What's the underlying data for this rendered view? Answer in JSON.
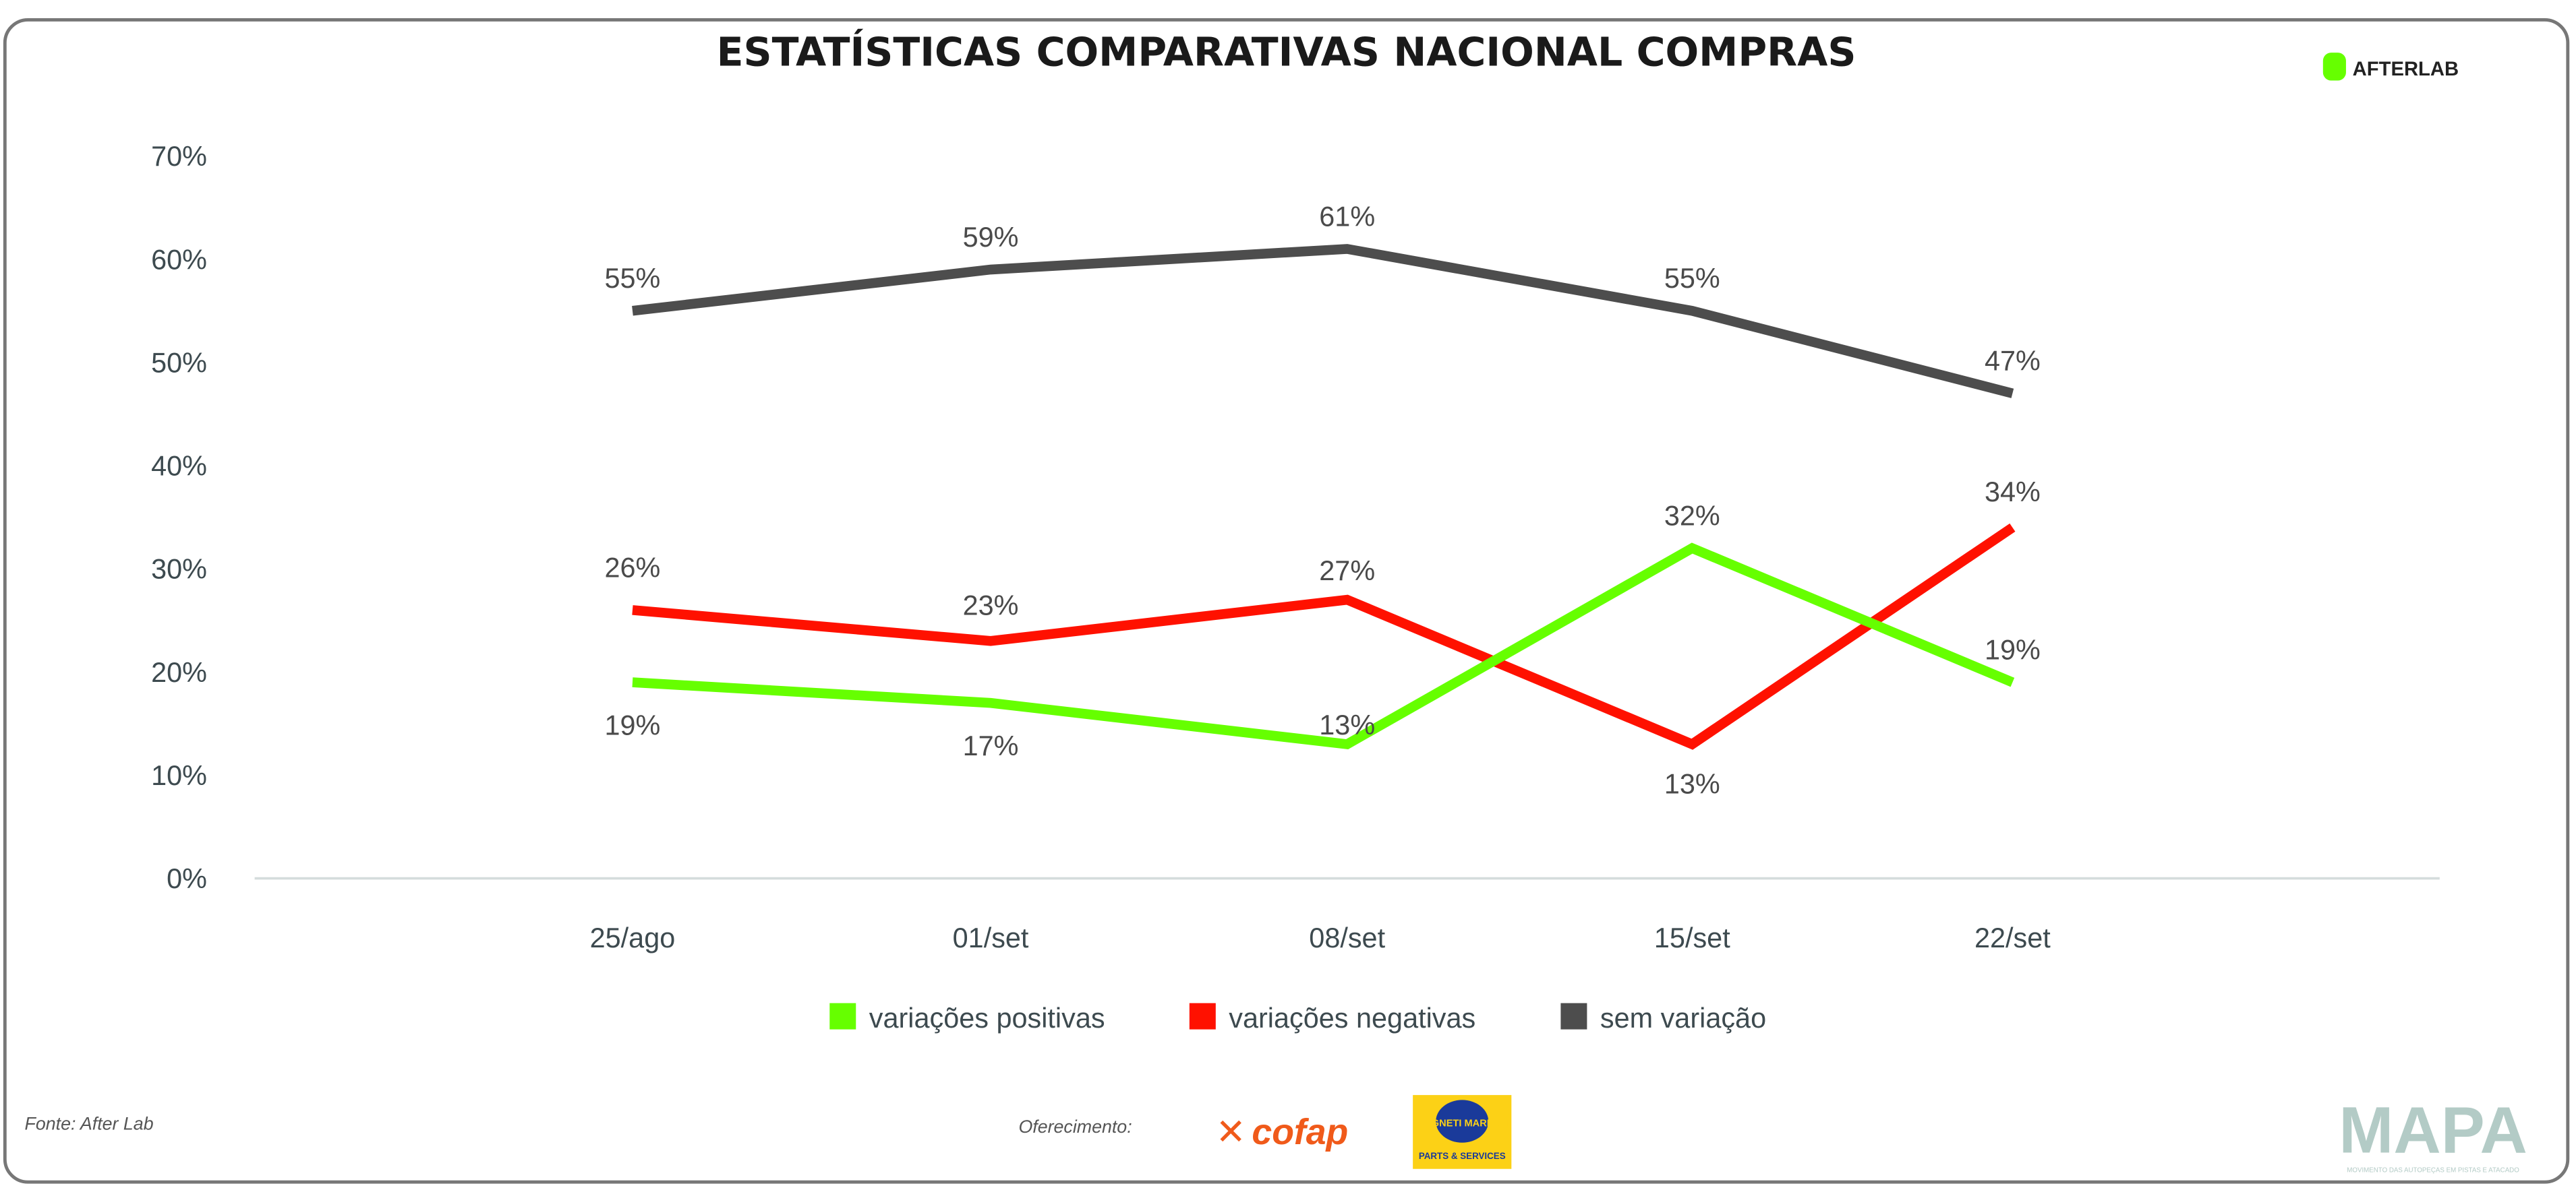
{
  "chart_data": {
    "type": "line",
    "title": "ESTATÍSTICAS COMPARATIVAS NACIONAL COMPRAS",
    "categories": [
      "25/ago",
      "01/set",
      "08/set",
      "15/set",
      "22/set"
    ],
    "ylim": [
      0,
      70
    ],
    "yticks": [
      "0%",
      "10%",
      "20%",
      "30%",
      "40%",
      "50%",
      "60%",
      "70%"
    ],
    "grid": false,
    "legend_position": "bottom",
    "series": [
      {
        "name": "variações positivas",
        "color": "#66ff00",
        "values": [
          19,
          17,
          13,
          32,
          19
        ],
        "labels": [
          "19%",
          "17%",
          "13%",
          "32%",
          "19%"
        ]
      },
      {
        "name": "variações negativas",
        "color": "#ff1100",
        "values": [
          26,
          23,
          27,
          13,
          34
        ],
        "labels": [
          "26%",
          "23%",
          "27%",
          "13%",
          "34%"
        ]
      },
      {
        "name": "sem variação",
        "color": "#4d4d4d",
        "values": [
          55,
          59,
          61,
          55,
          47
        ],
        "labels": [
          "55%",
          "59%",
          "61%",
          "55%",
          "47%"
        ]
      }
    ]
  },
  "footer": {
    "source": "Fonte: After Lab",
    "sponsor_label": "Oferecimento:",
    "sponsors": [
      "cofap",
      "MAGNETI MARELLI",
      "PARTS & SERVICES"
    ],
    "brand": "MAPA",
    "brand_tagline": "MOVIMENTO DAS AUTOPEÇAS EM PISTAS E ATACADO"
  },
  "header": {
    "logo": "AFTERLAB",
    "logo_color": "#66ff00"
  }
}
